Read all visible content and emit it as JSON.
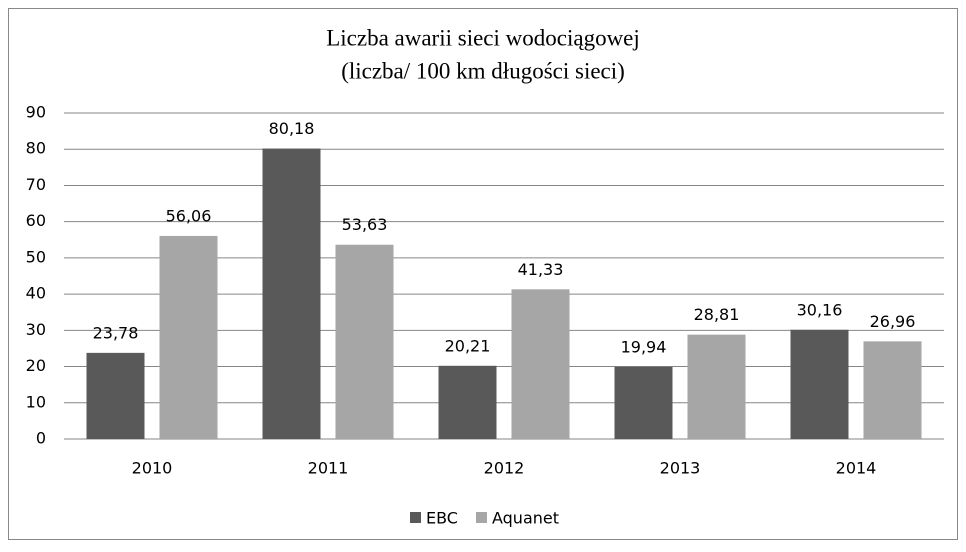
{
  "chart_data": {
    "type": "bar",
    "title": "Liczba awarii sieci wodociągowej",
    "subtitle": "(liczba/ 100 km długości sieci)",
    "categories": [
      "2010",
      "2011",
      "2012",
      "2013",
      "2014"
    ],
    "series": [
      {
        "name": "EBC",
        "color": "#595959",
        "values": [
          23.78,
          80.18,
          20.21,
          19.94,
          30.16
        ],
        "value_labels": [
          "23,78",
          "80,18",
          "20,21",
          "19,94",
          "30,16"
        ]
      },
      {
        "name": "Aquanet",
        "color": "#a6a6a6",
        "values": [
          56.06,
          53.63,
          41.33,
          28.81,
          26.96
        ],
        "value_labels": [
          "56,06",
          "53,63",
          "41,33",
          "28,81",
          "26,96"
        ]
      }
    ],
    "ylim": [
      0,
      90
    ],
    "yticks": [
      0,
      10,
      20,
      30,
      40,
      50,
      60,
      70,
      80,
      90
    ],
    "grid": true,
    "legend": "bottom"
  }
}
